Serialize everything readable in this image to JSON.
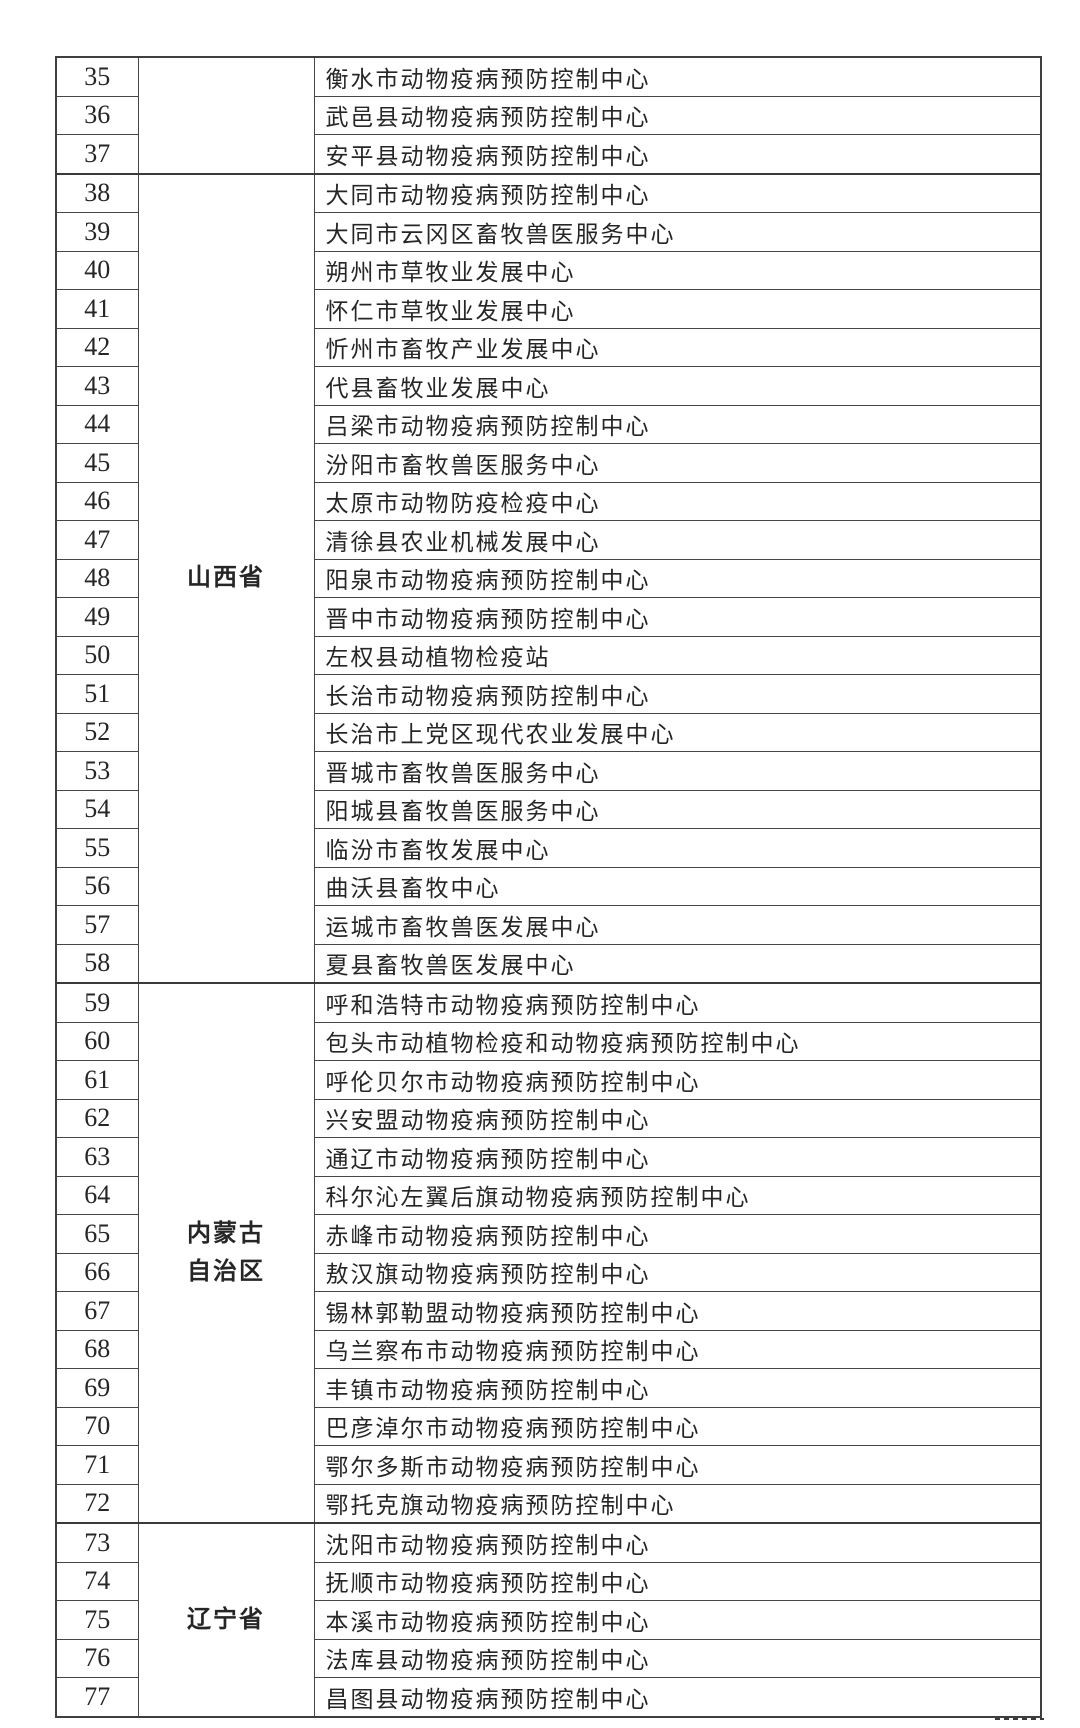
{
  "page": {
    "background_color": "#ffffff",
    "text_color": "#262626",
    "border_color": "#3f3f3f"
  },
  "table": {
    "first_visible_number": "35",
    "last_visible_number": "77",
    "groups": [
      {
        "province": "",
        "rows": [
          {
            "no": "35",
            "name": "衡水市动物疫病预防控制中心"
          },
          {
            "no": "36",
            "name": "武邑县动物疫病预防控制中心"
          },
          {
            "no": "37",
            "name": "安平县动物疫病预防控制中心"
          }
        ]
      },
      {
        "province": "山西省",
        "rows": [
          {
            "no": "38",
            "name": "大同市动物疫病预防控制中心"
          },
          {
            "no": "39",
            "name": "大同市云冈区畜牧兽医服务中心"
          },
          {
            "no": "40",
            "name": "朔州市草牧业发展中心"
          },
          {
            "no": "41",
            "name": "怀仁市草牧业发展中心"
          },
          {
            "no": "42",
            "name": "忻州市畜牧产业发展中心"
          },
          {
            "no": "43",
            "name": "代县畜牧业发展中心"
          },
          {
            "no": "44",
            "name": "吕梁市动物疫病预防控制中心"
          },
          {
            "no": "45",
            "name": "汾阳市畜牧兽医服务中心"
          },
          {
            "no": "46",
            "name": "太原市动物防疫检疫中心"
          },
          {
            "no": "47",
            "name": "清徐县农业机械发展中心"
          },
          {
            "no": "48",
            "name": "阳泉市动物疫病预防控制中心"
          },
          {
            "no": "49",
            "name": "晋中市动物疫病预防控制中心"
          },
          {
            "no": "50",
            "name": "左权县动植物检疫站"
          },
          {
            "no": "51",
            "name": "长治市动物疫病预防控制中心"
          },
          {
            "no": "52",
            "name": "长治市上党区现代农业发展中心"
          },
          {
            "no": "53",
            "name": "晋城市畜牧兽医服务中心"
          },
          {
            "no": "54",
            "name": "阳城县畜牧兽医服务中心"
          },
          {
            "no": "55",
            "name": "临汾市畜牧发展中心"
          },
          {
            "no": "56",
            "name": "曲沃县畜牧中心"
          },
          {
            "no": "57",
            "name": "运城市畜牧兽医发展中心"
          },
          {
            "no": "58",
            "name": "夏县畜牧兽医发展中心"
          }
        ]
      },
      {
        "province": "内蒙古自治区",
        "rows": [
          {
            "no": "59",
            "name": "呼和浩特市动物疫病预防控制中心"
          },
          {
            "no": "60",
            "name": "包头市动植物检疫和动物疫病预防控制中心"
          },
          {
            "no": "61",
            "name": "呼伦贝尔市动物疫病预防控制中心"
          },
          {
            "no": "62",
            "name": "兴安盟动物疫病预防控制中心"
          },
          {
            "no": "63",
            "name": "通辽市动物疫病预防控制中心"
          },
          {
            "no": "64",
            "name": "科尔沁左翼后旗动物疫病预防控制中心"
          },
          {
            "no": "65",
            "name": "赤峰市动物疫病预防控制中心"
          },
          {
            "no": "66",
            "name": "敖汉旗动物疫病预防控制中心"
          },
          {
            "no": "67",
            "name": "锡林郭勒盟动物疫病预防控制中心"
          },
          {
            "no": "68",
            "name": "乌兰察布市动物疫病预防控制中心"
          },
          {
            "no": "69",
            "name": "丰镇市动物疫病预防控制中心"
          },
          {
            "no": "70",
            "name": "巴彦淖尔市动物疫病预防控制中心"
          },
          {
            "no": "71",
            "name": "鄂尔多斯市动物疫病预防控制中心"
          },
          {
            "no": "72",
            "name": "鄂托克旗动物疫病预防控制中心"
          }
        ]
      },
      {
        "province": "辽宁省",
        "rows": [
          {
            "no": "73",
            "name": "沈阳市动物疫病预防控制中心"
          },
          {
            "no": "74",
            "name": "抚顺市动物疫病预防控制中心"
          },
          {
            "no": "75",
            "name": "本溪市动物疫病预防控制中心"
          },
          {
            "no": "76",
            "name": "法库县动物疫病预防控制中心"
          },
          {
            "no": "77",
            "name": "昌图县动物疫病预防控制中心"
          }
        ]
      }
    ]
  }
}
